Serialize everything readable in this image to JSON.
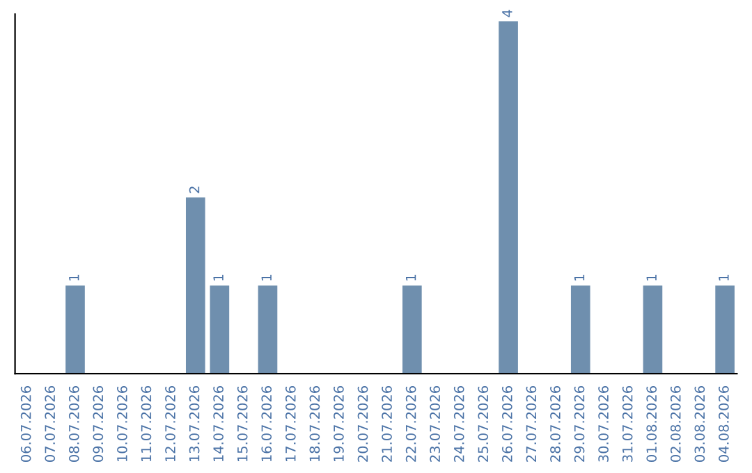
{
  "chart_data": {
    "type": "bar",
    "categories": [
      "06.07.2026",
      "07.07.2026",
      "08.07.2026",
      "09.07.2026",
      "10.07.2026",
      "11.07.2026",
      "12.07.2026",
      "13.07.2026",
      "14.07.2026",
      "15.07.2026",
      "16.07.2026",
      "17.07.2026",
      "18.07.2026",
      "19.07.2026",
      "20.07.2026",
      "21.07.2026",
      "22.07.2026",
      "23.07.2026",
      "24.07.2026",
      "25.07.2026",
      "26.07.2026",
      "27.07.2026",
      "28.07.2026",
      "29.07.2026",
      "30.07.2026",
      "31.07.2026",
      "01.08.2026",
      "02.08.2026",
      "03.08.2026",
      "04.08.2026"
    ],
    "values": [
      0,
      0,
      1,
      0,
      0,
      0,
      0,
      2,
      1,
      0,
      1,
      0,
      0,
      0,
      0,
      0,
      1,
      0,
      0,
      0,
      4,
      0,
      0,
      1,
      0,
      0,
      1,
      0,
      0,
      1
    ],
    "value_labels": [
      null,
      null,
      "1",
      null,
      null,
      null,
      null,
      "2",
      "1",
      null,
      "1",
      null,
      null,
      null,
      null,
      null,
      "1",
      null,
      null,
      null,
      "4",
      null,
      null,
      "1",
      null,
      null,
      "1",
      null,
      null,
      "1"
    ],
    "color": "#6f8fae",
    "tick_labels": "x",
    "grid": false,
    "legend": false
  }
}
